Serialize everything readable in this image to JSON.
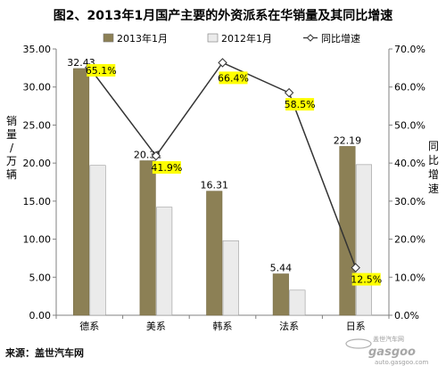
{
  "chart_data": {
    "type": "bar",
    "title": "图2、2013年1月国产主要的外资派系在华销量及其同比增速",
    "categories": [
      "德系",
      "美系",
      "韩系",
      "法系",
      "日系"
    ],
    "series": [
      {
        "name": "2013年1月",
        "type": "bar",
        "values": [
          32.43,
          20.31,
          16.31,
          5.44,
          22.19
        ],
        "color": "#8c8055",
        "value_labels": [
          "32.43",
          "20.31",
          "16.31",
          "5.44",
          "22.19"
        ]
      },
      {
        "name": "2012年1月",
        "type": "bar",
        "values": [
          19.7,
          14.2,
          9.8,
          3.3,
          19.8
        ],
        "color": "#ebebeb"
      },
      {
        "name": "同比增速",
        "type": "line",
        "axis": "right",
        "values": [
          65.1,
          41.9,
          66.4,
          58.5,
          12.5
        ],
        "color": "#333333",
        "value_labels": [
          "65.1%",
          "41.9%",
          "66.4%",
          "58.5%",
          "12.5%"
        ],
        "label_bg": "#ffff00"
      }
    ],
    "ylabel": "销量/万辆",
    "y2label": "同比增速",
    "ylim": [
      0,
      35
    ],
    "y2lim": [
      0,
      70
    ],
    "yticks": [
      "0.00",
      "5.00",
      "10.00",
      "15.00",
      "20.00",
      "25.00",
      "30.00",
      "35.00"
    ],
    "y2ticks": [
      "0.0%",
      "10.0%",
      "20.0%",
      "30.0%",
      "40.0%",
      "50.0%",
      "60.0%",
      "70.0%"
    ],
    "grid": false,
    "legend": "top"
  },
  "source": "来源：盖世汽车网",
  "watermark": {
    "brand": "gasgoo",
    "sub": "盖世汽车网",
    "url": "auto.gasgoo.com"
  }
}
